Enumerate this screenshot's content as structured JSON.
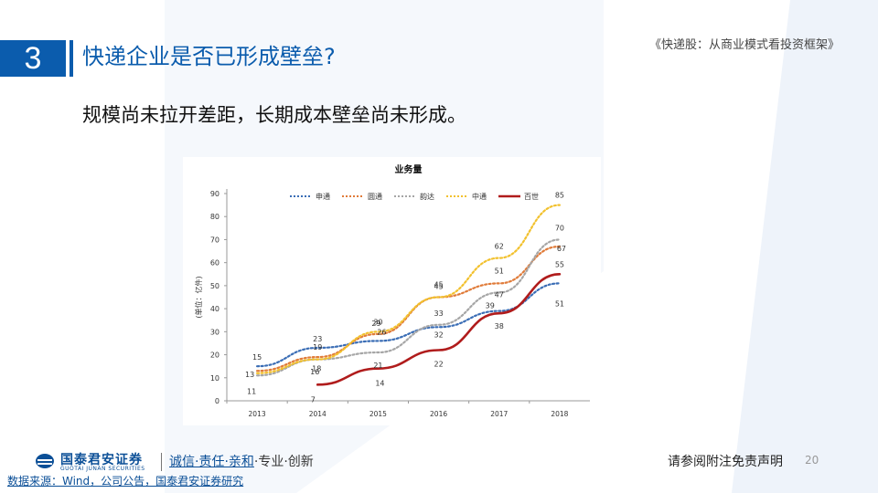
{
  "header": {
    "section_number": "3",
    "title": "快递企业是否已形成壁垒?",
    "report_name": "《快递股：从商业模式看投资框架》"
  },
  "subtitle": "规模尚未拉开差距，长期成本壁垒尚未形成。",
  "chart_data": {
    "type": "line",
    "title": "业务量",
    "ylabel": "(单位：亿件)",
    "xlabel": "",
    "categories": [
      "2013",
      "2014",
      "2015",
      "2016",
      "2017",
      "2018"
    ],
    "ylim": [
      0,
      90
    ],
    "yticks": [
      "0",
      "10",
      "20",
      "30",
      "40",
      "50",
      "60",
      "70",
      "80",
      "90"
    ],
    "grid": false,
    "legend_position": "top",
    "series": [
      {
        "name": "申通",
        "style": "dotted",
        "color": "#3a6db5",
        "values": [
          15,
          23,
          26,
          32,
          39,
          51
        ],
        "labels": [
          "15",
          "23",
          "26",
          "32",
          "39",
          "51"
        ]
      },
      {
        "name": "圆通",
        "style": "dotted",
        "color": "#e07b39",
        "values": [
          13,
          19,
          29,
          45,
          51,
          67
        ],
        "labels": [
          "13",
          "19",
          "29",
          "45",
          "51",
          "67"
        ]
      },
      {
        "name": "韵达",
        "style": "dotted",
        "color": "#a6a6a6",
        "values": [
          11,
          18,
          21,
          33,
          47,
          70
        ],
        "labels": [
          "11",
          "18",
          "21",
          "33",
          "47",
          "70"
        ]
      },
      {
        "name": "中通",
        "style": "dotted",
        "color": "#f2c12e",
        "values": [
          12,
          18,
          30,
          45,
          62,
          85
        ],
        "labels": [
          "",
          "",
          "30",
          "45",
          "62",
          "85"
        ]
      },
      {
        "name": "百世",
        "style": "solid",
        "color": "#b01c1c",
        "values": [
          null,
          7,
          14,
          22,
          38,
          55
        ],
        "labels": [
          "",
          "7",
          "14",
          "22",
          "38",
          "55"
        ]
      }
    ],
    "extra_labels": [
      "16"
    ]
  },
  "footer": {
    "logo_text": "国泰君安证券",
    "logo_sub": "GUOTAI JUNAN SECURITIES",
    "slogan_underlined": "诚信·责任·亲和",
    "slogan_rest": "·专业·创新",
    "disclaimer": "请参阅附注免责声明",
    "page_number": "20",
    "source": "数据来源：Wind，公司公告，国泰君安证券研究"
  }
}
